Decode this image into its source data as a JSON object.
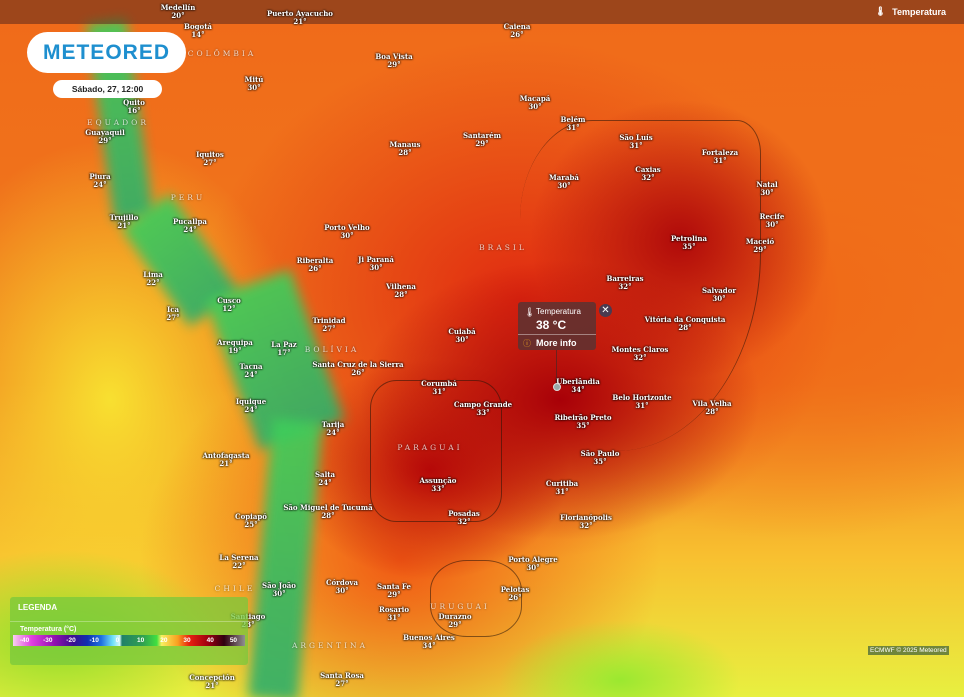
{
  "brand": {
    "logo_text": "METEORED"
  },
  "datetime": "Sábado, 27, 12:00",
  "layer": {
    "label": "Temperatura",
    "icon": "thermometer-icon"
  },
  "popup": {
    "title": "Temperatura",
    "value": "38 °C",
    "more_info": "More info"
  },
  "legend": {
    "title": "LEGENDA",
    "unit": "Temperatura (°C)",
    "ticks": [
      "-40",
      "-30",
      "-20",
      "-10",
      "0",
      "10",
      "20",
      "30",
      "40",
      "50"
    ]
  },
  "credit": "ECMWF © 2025 Meteored",
  "countries": [
    "COLÔMBIA",
    "EQUADOR",
    "PERU",
    "BRASIL",
    "BOLÍVIA",
    "PARAGUAI",
    "ARGENTINA",
    "URUGUAI",
    "CHILE"
  ],
  "cities": [
    {
      "name": "Medellín",
      "temp": "20°"
    },
    {
      "name": "Puerto Ayacucho",
      "temp": "21°"
    },
    {
      "name": "Bogotá",
      "temp": "14°"
    },
    {
      "name": "Mitú",
      "temp": "30°"
    },
    {
      "name": "Quito",
      "temp": "16°"
    },
    {
      "name": "Guayaquil",
      "temp": "29°"
    },
    {
      "name": "Iquitos",
      "temp": "27°"
    },
    {
      "name": "Piura",
      "temp": "24°"
    },
    {
      "name": "Trujillo",
      "temp": "21°"
    },
    {
      "name": "Pucallpa",
      "temp": "24°"
    },
    {
      "name": "Porto Velho",
      "temp": "30°"
    },
    {
      "name": "Ji Paraná",
      "temp": "30°"
    },
    {
      "name": "Riberalta",
      "temp": "26°"
    },
    {
      "name": "Lima",
      "temp": "22°"
    },
    {
      "name": "Vilhena",
      "temp": "28°"
    },
    {
      "name": "Cusco",
      "temp": "12°"
    },
    {
      "name": "Ica",
      "temp": "27°"
    },
    {
      "name": "Trinidad",
      "temp": "27°"
    },
    {
      "name": "Arequipa",
      "temp": "19°"
    },
    {
      "name": "La Paz",
      "temp": "17°"
    },
    {
      "name": "Santa Cruz de la Sierra",
      "temp": "26°"
    },
    {
      "name": "Tacna",
      "temp": "24°"
    },
    {
      "name": "Iquique",
      "temp": "24°"
    },
    {
      "name": "Tarija",
      "temp": "24°"
    },
    {
      "name": "Boa Vista",
      "temp": "29°"
    },
    {
      "name": "Caiena",
      "temp": "26°"
    },
    {
      "name": "Macapá",
      "temp": "30°"
    },
    {
      "name": "Belém",
      "temp": "31°"
    },
    {
      "name": "Santarém",
      "temp": "29°"
    },
    {
      "name": "Manaus",
      "temp": "28°"
    },
    {
      "name": "São Luís",
      "temp": "31°"
    },
    {
      "name": "Fortaleza",
      "temp": "31°"
    },
    {
      "name": "Caxias",
      "temp": "32°"
    },
    {
      "name": "Marabá",
      "temp": "30°"
    },
    {
      "name": "Natal",
      "temp": "30°"
    },
    {
      "name": "Recife",
      "temp": "30°"
    },
    {
      "name": "Maceió",
      "temp": "29°"
    },
    {
      "name": "Petrolina",
      "temp": "35°"
    },
    {
      "name": "Barreiras",
      "temp": "32°"
    },
    {
      "name": "Salvador",
      "temp": "30°"
    },
    {
      "name": "Vitória da Conquista",
      "temp": "28°"
    },
    {
      "name": "Cuiabá",
      "temp": "30°"
    },
    {
      "name": "Montes Claros",
      "temp": "32°"
    },
    {
      "name": "Corumbá",
      "temp": "31°"
    },
    {
      "name": "Uberlândia",
      "temp": "34°"
    },
    {
      "name": "Campo Grande",
      "temp": "33°"
    },
    {
      "name": "Belo Horizonte",
      "temp": "31°"
    },
    {
      "name": "Vila Velha",
      "temp": "28°"
    },
    {
      "name": "Ribeirão Preto",
      "temp": "35°"
    },
    {
      "name": "São Paulo",
      "temp": "35°"
    },
    {
      "name": "Antofagasta",
      "temp": "21°"
    },
    {
      "name": "Salta",
      "temp": "24°"
    },
    {
      "name": "Assunção",
      "temp": "33°"
    },
    {
      "name": "Curitiba",
      "temp": "31°"
    },
    {
      "name": "São Miguel de Tucumã",
      "temp": "28°"
    },
    {
      "name": "Copiapó",
      "temp": "25°"
    },
    {
      "name": "Posadas",
      "temp": "32°"
    },
    {
      "name": "Florianópolis",
      "temp": "32°"
    },
    {
      "name": "Porto Alegre",
      "temp": "30°"
    },
    {
      "name": "La Serena",
      "temp": "22°"
    },
    {
      "name": "São João",
      "temp": "30°"
    },
    {
      "name": "Córdova",
      "temp": "30°"
    },
    {
      "name": "Santa Fe",
      "temp": "29°"
    },
    {
      "name": "Pelotas",
      "temp": "26°"
    },
    {
      "name": "Rosario",
      "temp": "31°"
    },
    {
      "name": "Durazno",
      "temp": "29°"
    },
    {
      "name": "Santiago",
      "temp": "23°"
    },
    {
      "name": "Buenos Aires",
      "temp": "34°"
    },
    {
      "name": "Santa Rosa",
      "temp": "27°"
    },
    {
      "name": "Concepción",
      "temp": "21°"
    }
  ]
}
